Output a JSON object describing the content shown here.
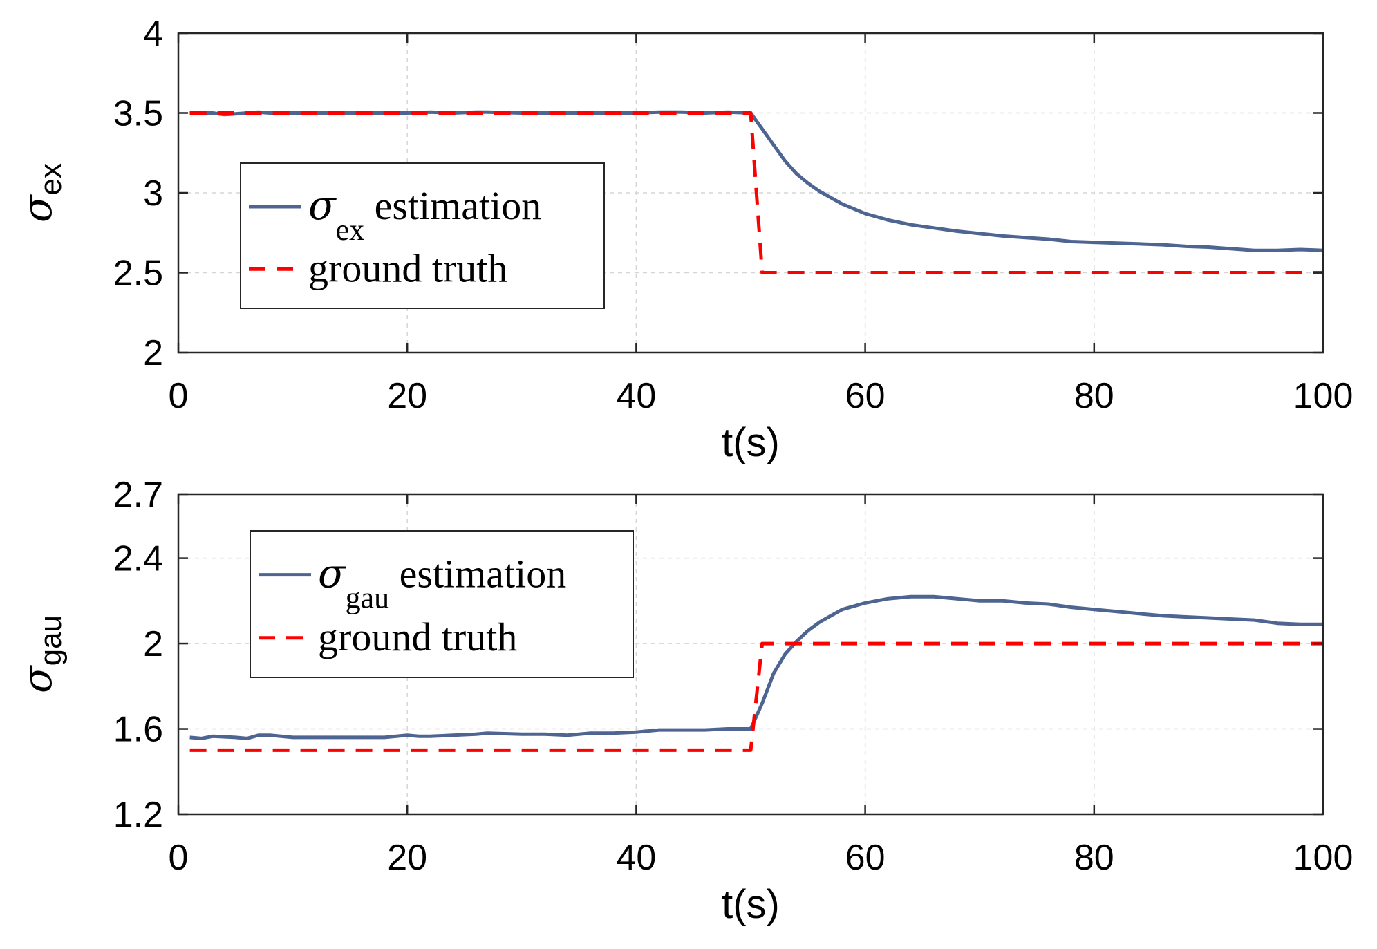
{
  "chart_data": [
    {
      "type": "line",
      "xlabel": "t(s)",
      "ylabel": {
        "symbol": "σ",
        "subscript": "ex"
      },
      "xlim": [
        0,
        100
      ],
      "ylim": [
        2,
        4
      ],
      "xticks": [
        0,
        20,
        40,
        60,
        80,
        100
      ],
      "yticks": [
        2,
        2.5,
        3,
        3.5,
        4
      ],
      "ytick_labels": [
        "2",
        "2.5",
        "3",
        "3.5",
        "4"
      ],
      "grid": true,
      "legend": {
        "position": "middle-left",
        "entries": [
          {
            "symbol": "σ",
            "subscript": "ex",
            "text": " estimation"
          },
          {
            "text": "ground truth"
          }
        ]
      },
      "series": [
        {
          "name": "σex estimation",
          "color": "#4f6591",
          "style": "solid",
          "x": [
            1,
            2,
            3,
            4,
            5,
            6,
            7,
            8,
            9,
            10,
            12,
            14,
            16,
            18,
            20,
            22,
            24,
            26,
            27,
            30,
            32,
            35,
            38,
            40,
            42,
            44,
            46,
            48,
            50,
            51,
            52,
            53,
            54,
            55,
            56,
            57,
            58,
            59,
            60,
            62,
            64,
            66,
            68,
            70,
            72,
            74,
            76,
            78,
            80,
            82,
            84,
            86,
            88,
            90,
            92,
            94,
            96,
            98,
            100
          ],
          "y": [
            3.5,
            3.5,
            3.5,
            3.49,
            3.495,
            3.5,
            3.505,
            3.5,
            3.5,
            3.5,
            3.5,
            3.5,
            3.5,
            3.5,
            3.5,
            3.505,
            3.5,
            3.505,
            3.505,
            3.5,
            3.5,
            3.5,
            3.5,
            3.5,
            3.505,
            3.505,
            3.5,
            3.505,
            3.5,
            3.4,
            3.3,
            3.2,
            3.12,
            3.06,
            3.01,
            2.97,
            2.93,
            2.9,
            2.87,
            2.83,
            2.8,
            2.78,
            2.76,
            2.745,
            2.73,
            2.72,
            2.71,
            2.695,
            2.69,
            2.685,
            2.68,
            2.675,
            2.665,
            2.66,
            2.65,
            2.64,
            2.64,
            2.645,
            2.64
          ]
        },
        {
          "name": "ground truth",
          "color": "#ff0000",
          "style": "dashed",
          "x": [
            1,
            50,
            51,
            100
          ],
          "y": [
            3.5,
            3.5,
            2.5,
            2.5
          ]
        }
      ]
    },
    {
      "type": "line",
      "xlabel": "t(s)",
      "ylabel": {
        "symbol": "σ",
        "subscript": "gau"
      },
      "xlim": [
        0,
        100
      ],
      "ylim": [
        1.2,
        2.7
      ],
      "xticks": [
        0,
        20,
        40,
        60,
        80,
        100
      ],
      "yticks": [
        1.2,
        1.6,
        2,
        2.4,
        2.7
      ],
      "ytick_labels": [
        "1.2",
        "1.6",
        "2",
        "2.4",
        "2.7"
      ],
      "grid": true,
      "legend": {
        "position": "top-left",
        "entries": [
          {
            "symbol": "σ",
            "subscript": "gau",
            "text": " estimation"
          },
          {
            "text": "ground truth"
          }
        ]
      },
      "series": [
        {
          "name": "σgau estimation",
          "color": "#4f6591",
          "style": "solid",
          "x": [
            1,
            2,
            3,
            5,
            6,
            7,
            8,
            10,
            14,
            18,
            20,
            21,
            22,
            24,
            26,
            27,
            30,
            32,
            34,
            35,
            36,
            38,
            40,
            42,
            44,
            46,
            48,
            50,
            51,
            52,
            53,
            54,
            55,
            56,
            57,
            58,
            60,
            62,
            64,
            66,
            68,
            70,
            72,
            74,
            76,
            78,
            80,
            82,
            84,
            86,
            88,
            90,
            92,
            94,
            96,
            98,
            100
          ],
          "y": [
            1.56,
            1.555,
            1.565,
            1.56,
            1.555,
            1.57,
            1.57,
            1.56,
            1.56,
            1.56,
            1.57,
            1.565,
            1.565,
            1.57,
            1.575,
            1.58,
            1.575,
            1.575,
            1.57,
            1.575,
            1.58,
            1.58,
            1.585,
            1.595,
            1.595,
            1.595,
            1.6,
            1.6,
            1.72,
            1.86,
            1.95,
            2.01,
            2.06,
            2.1,
            2.13,
            2.16,
            2.19,
            2.21,
            2.22,
            2.22,
            2.21,
            2.2,
            2.2,
            2.19,
            2.185,
            2.17,
            2.16,
            2.15,
            2.14,
            2.13,
            2.125,
            2.12,
            2.115,
            2.11,
            2.095,
            2.09,
            2.09
          ]
        },
        {
          "name": "ground truth",
          "color": "#ff0000",
          "style": "dashed",
          "x": [
            1,
            50,
            51,
            100
          ],
          "y": [
            1.5,
            1.5,
            2,
            2
          ]
        }
      ]
    }
  ]
}
